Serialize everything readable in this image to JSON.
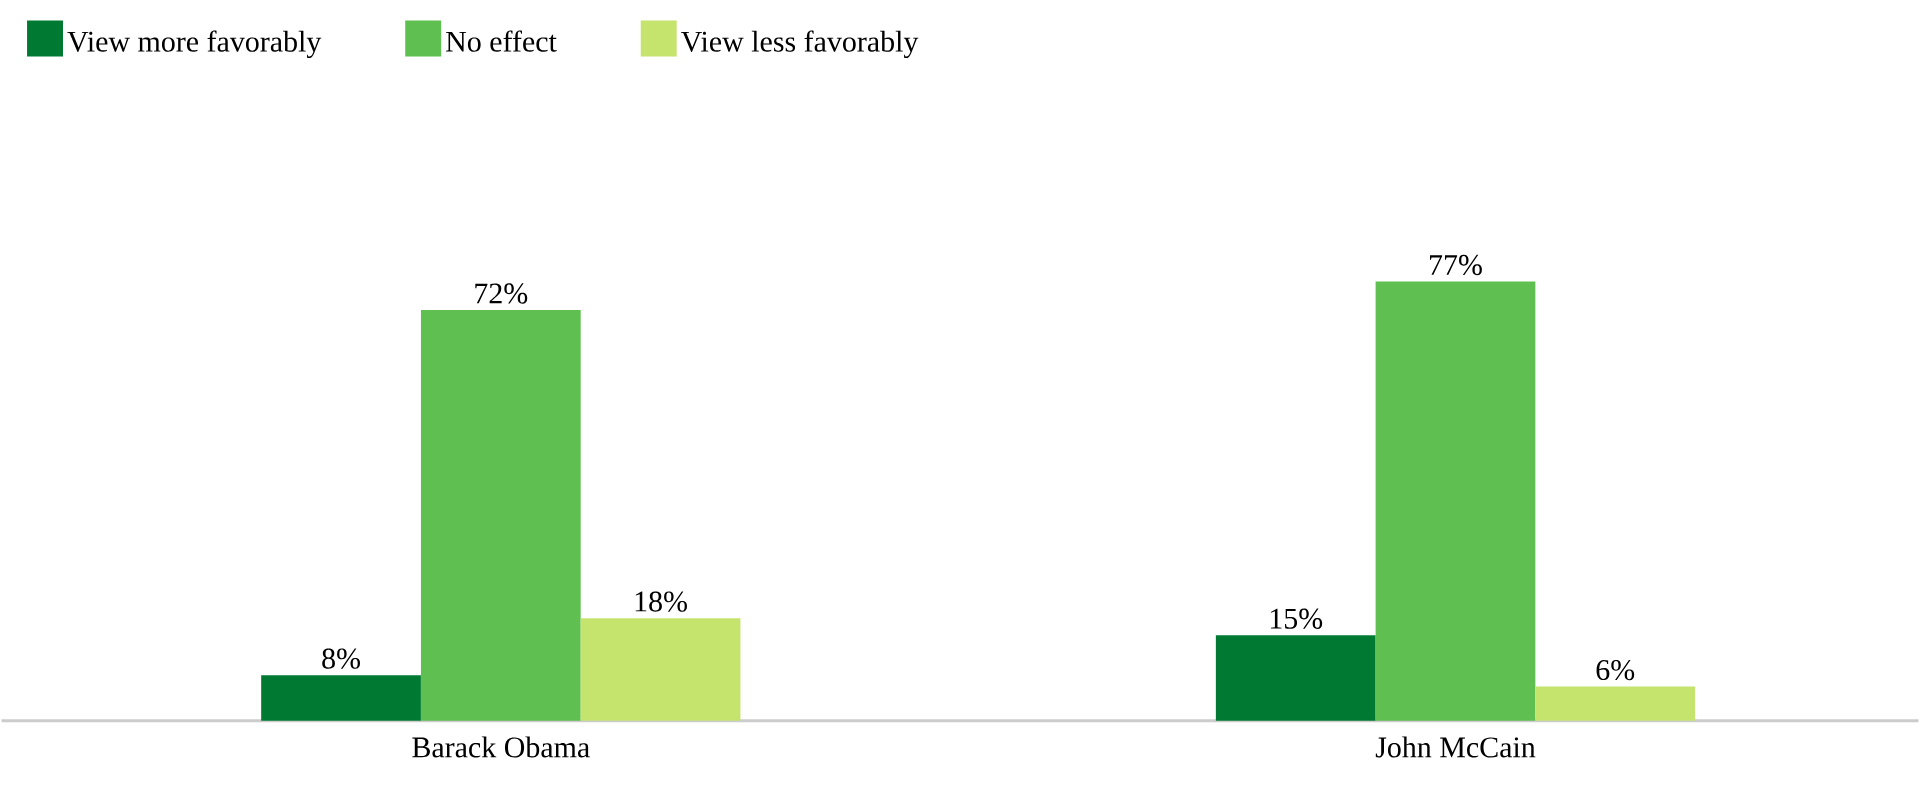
{
  "chart_data": {
    "type": "bar",
    "categories": [
      "Barack Obama",
      "John McCain"
    ],
    "series": [
      {
        "name": "View more favorably",
        "color": "#007a33",
        "values": [
          8,
          15
        ],
        "value_labels": [
          "8%",
          "15%"
        ]
      },
      {
        "name": "No effect",
        "color": "#5fbf50",
        "values": [
          72,
          77
        ],
        "value_labels": [
          "72%",
          "77%"
        ]
      },
      {
        "name": "View less favorably",
        "color": "#c4e46e",
        "values": [
          18,
          6
        ],
        "value_labels": [
          "18%",
          "6%"
        ]
      }
    ],
    "legend": "top left"
  }
}
